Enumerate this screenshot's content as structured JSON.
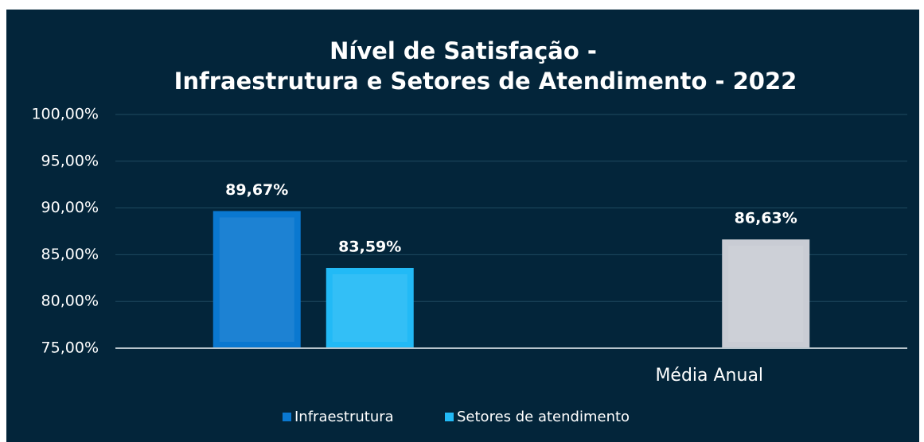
{
  "chart_data": {
    "type": "bar",
    "title": [
      "Nível de Satisfação -",
      "Infraestrutura e Setores de Atendimento - 2022"
    ],
    "categories": [
      null,
      "Média Anual"
    ],
    "series": [
      {
        "name": "Infraestrutura",
        "color": "#0a78d0",
        "values": [
          89.67,
          null
        ],
        "value_labels": [
          "89,67%",
          null
        ]
      },
      {
        "name": "Setores de atendimento",
        "color": "#22baf6",
        "colors": [
          "#22baf6",
          "#c9ccd4"
        ],
        "values": [
          83.59,
          86.63
        ],
        "value_labels": [
          "83,59%",
          "86,63%"
        ]
      }
    ],
    "ylim": [
      75,
      100
    ],
    "yticks": [
      {
        "value": 75,
        "label": "75,00%"
      },
      {
        "value": 80,
        "label": "80,00%"
      },
      {
        "value": 85,
        "label": "85,00%"
      },
      {
        "value": 90,
        "label": "90,00%"
      },
      {
        "value": 95,
        "label": "95,00%"
      },
      {
        "value": 100,
        "label": "100,00%"
      }
    ],
    "grid": true,
    "legend": "bottom"
  }
}
